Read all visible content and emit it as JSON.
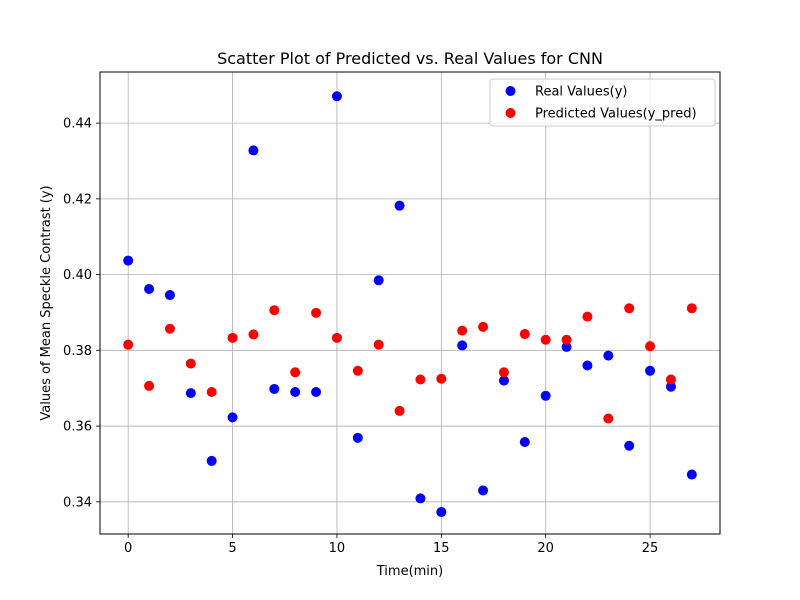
{
  "chart_data": {
    "type": "scatter",
    "title": "Scatter Plot of Predicted vs. Real Values for CNN",
    "xlabel": "Time(min)",
    "ylabel": "Values of Mean Speckle Contrast (y)",
    "xlim": [
      -1.35,
      28.35
    ],
    "ylim": [
      0.3315,
      0.4535
    ],
    "xticks": [
      0,
      5,
      10,
      15,
      20,
      25
    ],
    "yticks": [
      0.34,
      0.36,
      0.38,
      0.4,
      0.42,
      0.44
    ],
    "xtick_labels": [
      "0",
      "5",
      "10",
      "15",
      "20",
      "25"
    ],
    "ytick_labels": [
      "0.34",
      "0.36",
      "0.38",
      "0.40",
      "0.42",
      "0.44"
    ],
    "grid": true,
    "legend_position": "upper right",
    "series": [
      {
        "name": "Real Values(y)",
        "color": "#0000ff",
        "x": [
          0,
          1,
          2,
          3,
          4,
          5,
          6,
          7,
          8,
          9,
          10,
          11,
          12,
          13,
          14,
          15,
          16,
          17,
          18,
          19,
          20,
          21,
          22,
          23,
          24,
          25,
          26,
          27
        ],
        "y": [
          0.4037,
          0.3962,
          0.3946,
          0.3687,
          0.3508,
          0.3623,
          0.4328,
          0.3698,
          0.369,
          0.369,
          0.4471,
          0.3569,
          0.3985,
          0.4182,
          0.3409,
          0.3373,
          0.3813,
          0.343,
          0.372,
          0.3558,
          0.368,
          0.3809,
          0.376,
          0.3786,
          0.3548,
          0.3746,
          0.3704,
          0.3472
        ]
      },
      {
        "name": "Predicted Values(y_pred)",
        "color": "#ff0000",
        "x": [
          0,
          1,
          2,
          3,
          4,
          5,
          6,
          7,
          8,
          9,
          10,
          11,
          12,
          13,
          14,
          15,
          16,
          17,
          18,
          19,
          20,
          21,
          22,
          23,
          24,
          25,
          26,
          27
        ],
        "y": [
          0.3815,
          0.3706,
          0.3857,
          0.3765,
          0.369,
          0.3833,
          0.3842,
          0.3906,
          0.3742,
          0.3899,
          0.3833,
          0.3746,
          0.3815,
          0.364,
          0.3723,
          0.3725,
          0.3852,
          0.3862,
          0.3742,
          0.3843,
          0.3828,
          0.3828,
          0.3889,
          0.362,
          0.3911,
          0.3811,
          0.3723,
          0.3911
        ]
      }
    ]
  }
}
